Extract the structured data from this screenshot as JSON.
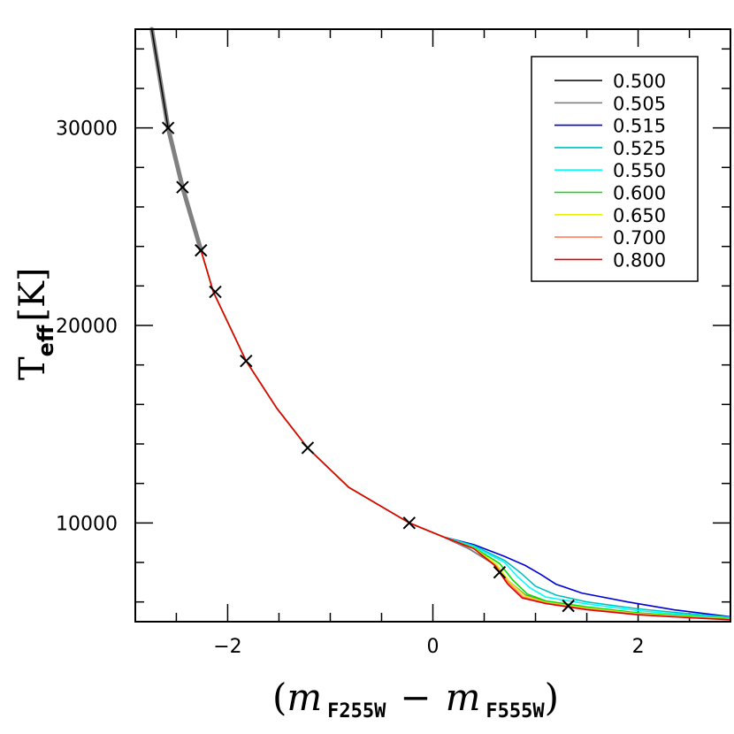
{
  "chart_data": {
    "type": "line",
    "xlabel": {
      "prefix": "(",
      "m1": "m",
      "sub1": "F255W",
      "minus": "−",
      "m2": "m",
      "sub2": "F555W",
      "suffix": ")"
    },
    "ylabel": {
      "main": "T",
      "sub": "eff",
      "unit": "[K]"
    },
    "xlim": [
      -2.9,
      2.9
    ],
    "ylim": [
      5000,
      35000
    ],
    "xticks": [
      -2,
      0,
      2
    ],
    "xtick_labels": [
      "−2",
      "0",
      "2"
    ],
    "yticks": [
      10000,
      20000,
      30000
    ],
    "ytick_labels": [
      "10000",
      "20000",
      "30000"
    ],
    "legend": {
      "placement": "top-right"
    },
    "common_path": [
      [
        -2.74,
        35000
      ],
      [
        -2.58,
        30000
      ],
      [
        -2.44,
        27000
      ],
      [
        -2.26,
        23800
      ],
      [
        -2.14,
        21700
      ],
      [
        -1.82,
        18200
      ],
      [
        -1.52,
        15800
      ],
      [
        -1.22,
        13800
      ],
      [
        -0.82,
        11800
      ],
      [
        -0.23,
        10000
      ],
      [
        0.1,
        9300
      ]
    ],
    "series": [
      {
        "name": "0.500",
        "color": "#000000",
        "points": [
          [
            0.1,
            9300
          ],
          [
            0.35,
            8700
          ],
          [
            0.6,
            7900
          ],
          [
            0.75,
            7000
          ],
          [
            0.9,
            6350
          ],
          [
            1.1,
            6000
          ],
          [
            1.5,
            5650
          ],
          [
            2.0,
            5380
          ],
          [
            2.5,
            5230
          ],
          [
            2.9,
            5130
          ]
        ]
      },
      {
        "name": "0.505",
        "color": "#808080",
        "points": [
          [
            0.1,
            9300
          ],
          [
            0.35,
            8700
          ],
          [
            0.6,
            7900
          ],
          [
            0.75,
            7000
          ],
          [
            0.9,
            6350
          ],
          [
            1.1,
            6000
          ],
          [
            1.5,
            5650
          ],
          [
            2.0,
            5380
          ],
          [
            2.5,
            5230
          ],
          [
            2.9,
            5130
          ]
        ]
      },
      {
        "name": "0.515",
        "color": "#0000d8",
        "points": [
          [
            0.1,
            9350
          ],
          [
            0.4,
            8900
          ],
          [
            0.7,
            8300
          ],
          [
            0.9,
            7850
          ],
          [
            1.05,
            7400
          ],
          [
            1.2,
            6900
          ],
          [
            1.45,
            6450
          ],
          [
            1.9,
            6000
          ],
          [
            2.35,
            5600
          ],
          [
            2.9,
            5250
          ]
        ]
      },
      {
        "name": "0.525",
        "color": "#00c0c0",
        "points": [
          [
            0.1,
            9330
          ],
          [
            0.4,
            8850
          ],
          [
            0.7,
            8100
          ],
          [
            0.85,
            7500
          ],
          [
            1.0,
            6800
          ],
          [
            1.2,
            6350
          ],
          [
            1.5,
            6000
          ],
          [
            2.0,
            5650
          ],
          [
            2.5,
            5400
          ],
          [
            2.9,
            5230
          ]
        ]
      },
      {
        "name": "0.550",
        "color": "#00ffff",
        "points": [
          [
            0.1,
            9320
          ],
          [
            0.4,
            8800
          ],
          [
            0.7,
            8000
          ],
          [
            0.82,
            7300
          ],
          [
            0.95,
            6700
          ],
          [
            1.1,
            6250
          ],
          [
            1.5,
            5900
          ],
          [
            2.0,
            5560
          ],
          [
            2.5,
            5330
          ],
          [
            2.9,
            5200
          ]
        ]
      },
      {
        "name": "0.600",
        "color": "#00e000",
        "points": [
          [
            0.1,
            9310
          ],
          [
            0.4,
            8750
          ],
          [
            0.65,
            7950
          ],
          [
            0.78,
            7100
          ],
          [
            0.92,
            6400
          ],
          [
            1.1,
            6050
          ],
          [
            1.5,
            5750
          ],
          [
            2.0,
            5450
          ],
          [
            2.5,
            5280
          ],
          [
            2.9,
            5160
          ]
        ]
      },
      {
        "name": "0.650",
        "color": "#e8f000",
        "points": [
          [
            0.1,
            9305
          ],
          [
            0.4,
            8720
          ],
          [
            0.62,
            7900
          ],
          [
            0.75,
            7000
          ],
          [
            0.9,
            6300
          ],
          [
            1.1,
            5980
          ],
          [
            1.5,
            5680
          ],
          [
            2.0,
            5400
          ],
          [
            2.5,
            5250
          ],
          [
            2.9,
            5140
          ]
        ]
      },
      {
        "name": "0.700",
        "color": "#ff8060",
        "points": [
          [
            0.1,
            9300
          ],
          [
            0.4,
            8700
          ],
          [
            0.6,
            7880
          ],
          [
            0.74,
            6950
          ],
          [
            0.88,
            6250
          ],
          [
            1.1,
            5950
          ],
          [
            1.5,
            5640
          ],
          [
            2.0,
            5370
          ],
          [
            2.5,
            5220
          ],
          [
            2.9,
            5120
          ]
        ]
      },
      {
        "name": "0.800",
        "color": "#e00000",
        "points": [
          [
            0.1,
            9300
          ],
          [
            0.4,
            8700
          ],
          [
            0.6,
            7860
          ],
          [
            0.73,
            6900
          ],
          [
            0.87,
            6200
          ],
          [
            1.1,
            5920
          ],
          [
            1.5,
            5610
          ],
          [
            2.0,
            5350
          ],
          [
            2.5,
            5200
          ],
          [
            2.9,
            5100
          ]
        ]
      }
    ],
    "markers": [
      [
        -2.58,
        30000
      ],
      [
        -2.44,
        27000
      ],
      [
        -2.26,
        23800
      ],
      [
        -2.12,
        21700
      ],
      [
        -1.82,
        18200
      ],
      [
        -1.22,
        13800
      ],
      [
        -0.23,
        10000
      ],
      [
        0.65,
        7500
      ],
      [
        1.32,
        5800
      ]
    ]
  }
}
